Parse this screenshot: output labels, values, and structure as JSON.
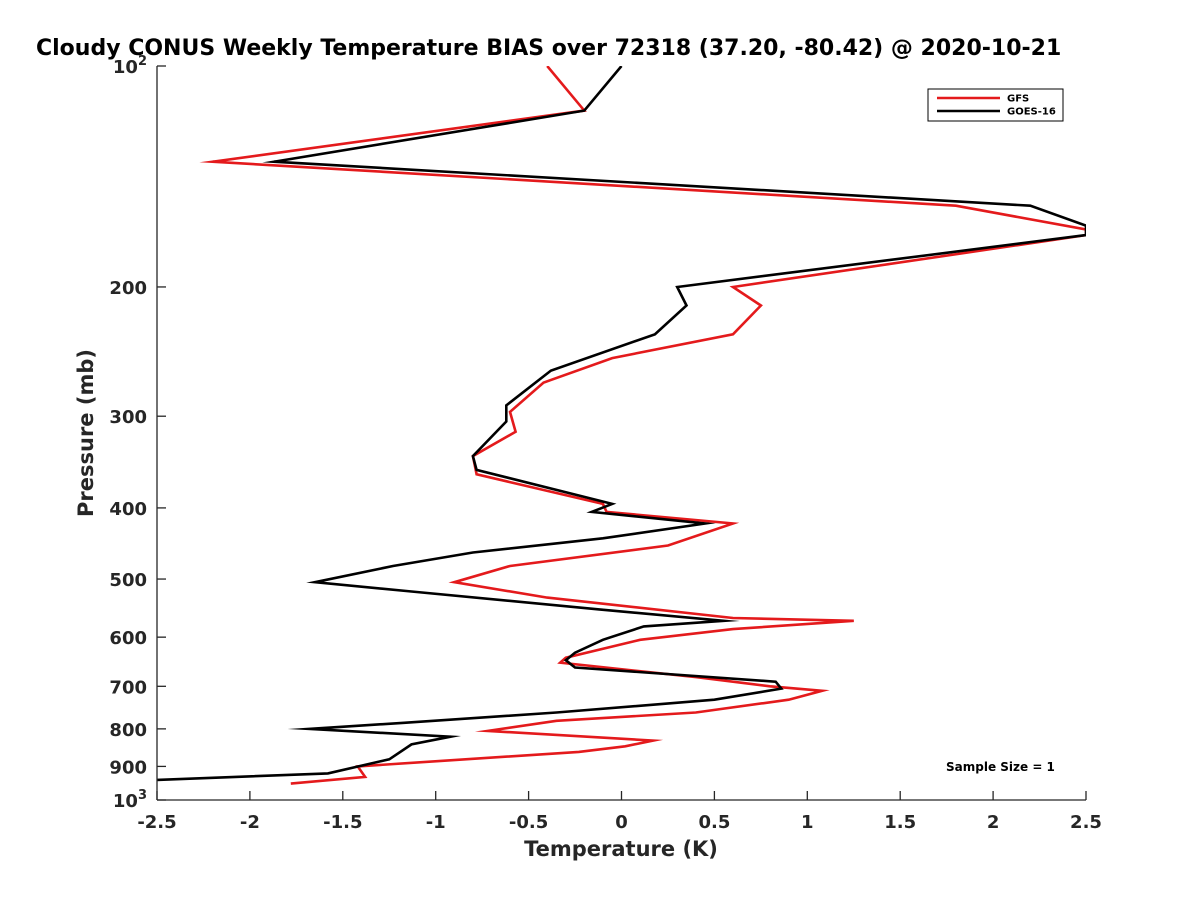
{
  "chart_data": {
    "type": "line",
    "title": "Cloudy CONUS Weekly Temperature BIAS over 72318 (37.20, -80.42) @ 2020-10-21",
    "xlabel": "Temperature (K)",
    "ylabel": "Pressure (mb)",
    "xlim": [
      -2.5,
      2.5
    ],
    "ylim": [
      100,
      1000
    ],
    "yscale": "log",
    "yreversed": true,
    "x_ticks": [
      "-2.5",
      "-2",
      "-1.5",
      "-1",
      "-0.5",
      "0",
      "0.5",
      "1",
      "1.5",
      "2",
      "2.5"
    ],
    "y_ticks": [
      {
        "value": 100,
        "base": "10",
        "exp": "2"
      },
      {
        "value": 200,
        "label": "200"
      },
      {
        "value": 300,
        "label": "300"
      },
      {
        "value": 400,
        "label": "400"
      },
      {
        "value": 500,
        "label": "500"
      },
      {
        "value": 600,
        "label": "600"
      },
      {
        "value": 700,
        "label": "700"
      },
      {
        "value": 800,
        "label": "800"
      },
      {
        "value": 900,
        "label": "900"
      },
      {
        "value": 1000,
        "base": "10",
        "exp": "3"
      }
    ],
    "legend_location": "top-right",
    "annotation": "Sample Size = 1",
    "series": [
      {
        "name": "GFS",
        "color": "#e41a1c",
        "points": [
          [
            -0.4,
            100
          ],
          [
            -0.2,
            115
          ],
          [
            -2.2,
            135
          ],
          [
            1.8,
            155
          ],
          [
            2.5,
            167
          ],
          [
            2.5,
            170
          ],
          [
            0.6,
            200
          ],
          [
            0.75,
            212
          ],
          [
            0.6,
            232
          ],
          [
            -0.05,
            250
          ],
          [
            -0.42,
            270
          ],
          [
            -0.6,
            296
          ],
          [
            -0.57,
            315
          ],
          [
            -0.8,
            340
          ],
          [
            -0.78,
            360
          ],
          [
            -0.1,
            395
          ],
          [
            -0.08,
            405
          ],
          [
            0.6,
            420
          ],
          [
            0.25,
            450
          ],
          [
            -0.6,
            480
          ],
          [
            -0.9,
            505
          ],
          [
            -0.4,
            530
          ],
          [
            0.6,
            565
          ],
          [
            1.25,
            570
          ],
          [
            0.6,
            585
          ],
          [
            0.1,
            605
          ],
          [
            -0.3,
            640
          ],
          [
            -0.33,
            650
          ],
          [
            0.4,
            680
          ],
          [
            0.8,
            700
          ],
          [
            1.08,
            710
          ],
          [
            0.9,
            730
          ],
          [
            0.4,
            760
          ],
          [
            -0.35,
            780
          ],
          [
            -0.72,
            805
          ],
          [
            0.17,
            830
          ],
          [
            0.02,
            845
          ],
          [
            -0.23,
            860
          ],
          [
            -1.42,
            900
          ],
          [
            -1.38,
            930
          ],
          [
            -1.78,
            950
          ]
        ]
      },
      {
        "name": "GOES-16",
        "color": "#000000",
        "points": [
          [
            0,
            100
          ],
          [
            -0.2,
            115
          ],
          [
            -1.87,
            135
          ],
          [
            2.2,
            155
          ],
          [
            2.5,
            165
          ],
          [
            2.5,
            170
          ],
          [
            0.3,
            200
          ],
          [
            0.35,
            212
          ],
          [
            0.18,
            232
          ],
          [
            -0.38,
            260
          ],
          [
            -0.62,
            290
          ],
          [
            -0.62,
            305
          ],
          [
            -0.8,
            340
          ],
          [
            -0.78,
            355
          ],
          [
            -0.05,
            395
          ],
          [
            -0.16,
            405
          ],
          [
            0.45,
            420
          ],
          [
            -0.1,
            440
          ],
          [
            -0.8,
            460
          ],
          [
            -1.23,
            480
          ],
          [
            -1.65,
            505
          ],
          [
            -1.13,
            520
          ],
          [
            -0.12,
            550
          ],
          [
            0.55,
            570
          ],
          [
            0.12,
            580
          ],
          [
            -0.1,
            605
          ],
          [
            -0.25,
            630
          ],
          [
            -0.3,
            645
          ],
          [
            -0.25,
            660
          ],
          [
            0.83,
            690
          ],
          [
            0.86,
            705
          ],
          [
            0.5,
            730
          ],
          [
            -0.35,
            760
          ],
          [
            -1.17,
            785
          ],
          [
            -1.68,
            800
          ],
          [
            -0.92,
            820
          ],
          [
            -1.13,
            840
          ],
          [
            -1.25,
            880
          ],
          [
            -1.58,
            920
          ],
          [
            -2.55,
            940
          ]
        ]
      }
    ]
  }
}
